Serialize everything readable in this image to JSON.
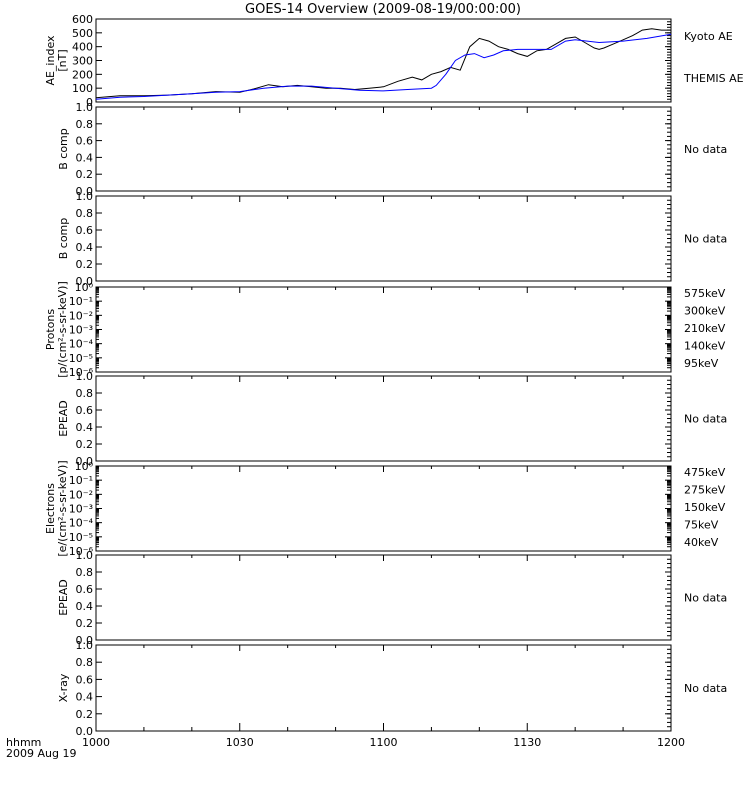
{
  "title": "GOES-14 Overview (2009-08-19/00:00:00)",
  "footer": {
    "line1": "hhmm",
    "line2": "2009 Aug 19"
  },
  "x_ticks": [
    "1000",
    "1030",
    "1100",
    "1130",
    "1200"
  ],
  "chart_data": [
    {
      "type": "line",
      "ylabel": [
        "AE_index",
        "[nT]"
      ],
      "ylim": [
        0,
        600
      ],
      "yticks": [
        "0",
        "100",
        "200",
        "300",
        "400",
        "500",
        "600"
      ],
      "xlim": [
        "10:00",
        "12:00"
      ],
      "series": [
        {
          "name": "Kyoto AE",
          "color": "#000000",
          "x_minutes": [
            0,
            5,
            10,
            15,
            20,
            25,
            30,
            33,
            36,
            39,
            42,
            45,
            48,
            51,
            54,
            57,
            60,
            63,
            66,
            68,
            70,
            72,
            74,
            76,
            78,
            80,
            82,
            84,
            86,
            88,
            90,
            92,
            94,
            96,
            98,
            100,
            102,
            104,
            105,
            106,
            108,
            110,
            112,
            114,
            116,
            118,
            120
          ],
          "values": [
            30,
            45,
            45,
            50,
            60,
            75,
            70,
            95,
            125,
            110,
            120,
            110,
            100,
            100,
            90,
            100,
            110,
            150,
            180,
            160,
            200,
            220,
            250,
            230,
            400,
            460,
            440,
            400,
            380,
            350,
            330,
            370,
            380,
            420,
            460,
            470,
            430,
            390,
            380,
            390,
            420,
            450,
            480,
            520,
            530,
            520,
            520
          ]
        },
        {
          "name": "THEMIS AE",
          "color": "#0000ff",
          "x_minutes": [
            0,
            5,
            10,
            15,
            20,
            25,
            30,
            35,
            40,
            45,
            50,
            55,
            60,
            65,
            70,
            71,
            73,
            75,
            77,
            79,
            81,
            83,
            85,
            88,
            90,
            92,
            95,
            98,
            100,
            105,
            110,
            115,
            120
          ],
          "values": [
            20,
            35,
            40,
            50,
            60,
            70,
            75,
            100,
            115,
            115,
            100,
            85,
            80,
            90,
            100,
            120,
            200,
            300,
            340,
            350,
            320,
            340,
            370,
            380,
            380,
            380,
            380,
            440,
            450,
            430,
            440,
            460,
            490
          ]
        }
      ]
    },
    {
      "type": "line",
      "ylabel": [
        "B comp"
      ],
      "ylim": [
        0,
        1
      ],
      "yticks": [
        "0.0",
        "0.2",
        "0.4",
        "0.6",
        "0.8",
        "1.0"
      ],
      "note": "No data"
    },
    {
      "type": "line",
      "ylabel": [
        "B comp"
      ],
      "ylim": [
        0,
        1
      ],
      "yticks": [
        "0.0",
        "0.2",
        "0.4",
        "0.6",
        "0.8",
        "1.0"
      ],
      "note": "No data"
    },
    {
      "type": "line",
      "ylabel": [
        "Protons",
        "[p/(cm²-s-sr-keV)]"
      ],
      "scale": "log",
      "ylim": [
        1e-06,
        1
      ],
      "yticks": [
        "10⁻⁶",
        "10⁻⁵",
        "10⁻⁴",
        "10⁻³",
        "10⁻²",
        "10⁻¹",
        "10⁰"
      ],
      "series": [
        {
          "name": "575keV",
          "color": "#8b0000"
        },
        {
          "name": "300keV",
          "color": "#e69500"
        },
        {
          "name": "210keV",
          "color": "#00cc44"
        },
        {
          "name": "140keV",
          "color": "#0000ff"
        },
        {
          "name": "95keV",
          "color": "#000000"
        }
      ]
    },
    {
      "type": "line",
      "ylabel": [
        "EPEAD"
      ],
      "ylim": [
        0,
        1
      ],
      "yticks": [
        "0.0",
        "0.2",
        "0.4",
        "0.6",
        "0.8",
        "1.0"
      ],
      "note": "No data"
    },
    {
      "type": "line",
      "ylabel": [
        "Electrons",
        "[e/(cm²-s-sr-keV)]"
      ],
      "scale": "log",
      "ylim": [
        1e-06,
        1
      ],
      "yticks": [
        "10⁻⁶",
        "10⁻⁵",
        "10⁻⁴",
        "10⁻³",
        "10⁻²",
        "10⁻¹",
        "10⁰"
      ],
      "series": [
        {
          "name": "475keV",
          "color": "#8b0000"
        },
        {
          "name": "275keV",
          "color": "#e69500"
        },
        {
          "name": "150keV",
          "color": "#00cc44"
        },
        {
          "name": "75keV",
          "color": "#0000ff"
        },
        {
          "name": "40keV",
          "color": "#000000"
        }
      ]
    },
    {
      "type": "line",
      "ylabel": [
        "EPEAD"
      ],
      "ylim": [
        0,
        1
      ],
      "yticks": [
        "0.0",
        "0.2",
        "0.4",
        "0.6",
        "0.8",
        "1.0"
      ],
      "note": "No data"
    },
    {
      "type": "line",
      "ylabel": [
        "X-ray"
      ],
      "ylim": [
        0,
        1
      ],
      "yticks": [
        "0.0",
        "0.2",
        "0.4",
        "0.6",
        "0.8",
        "1.0"
      ],
      "note": "No data"
    }
  ]
}
